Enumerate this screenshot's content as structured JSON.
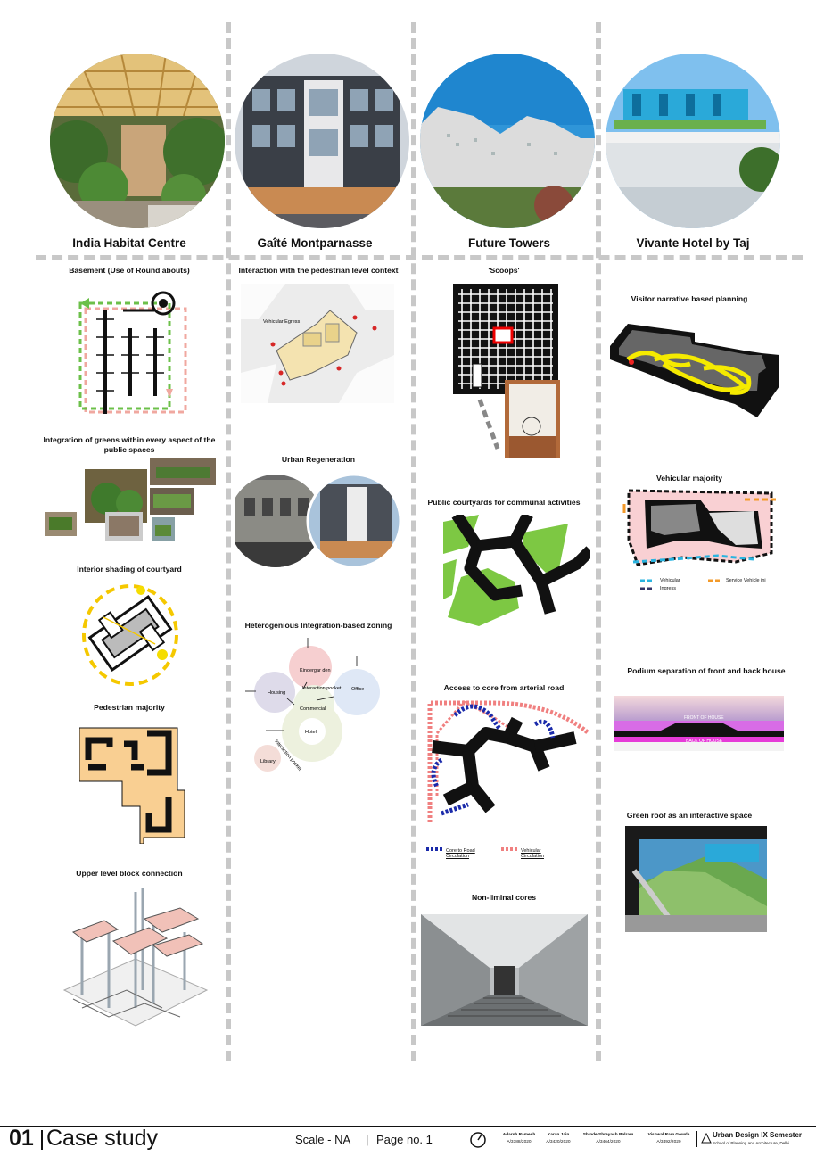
{
  "projects": [
    {
      "title": "India Habitat Centre"
    },
    {
      "title": "Gaîté Montparnasse"
    },
    {
      "title": "Future Towers"
    },
    {
      "title": "Vivante Hotel by Taj"
    }
  ],
  "col1": {
    "basement": "Basement (Use of Round abouts)",
    "greens": "Integration of greens within every aspect of the public spaces",
    "shading": "Interior shading of courtyard",
    "pedestrian": "Pedestrian majority",
    "upper": "Upper level block connection"
  },
  "col2": {
    "interaction": "Interaction with the pedestrian level context",
    "vehicular_egress": "Vehicular Egress",
    "regeneration": "Urban Regeneration",
    "zoning": "Heterogenious Integration-based zoning",
    "bubbles": {
      "kindergarden": "Kindergar den",
      "housing": "Housing",
      "interaction_pocket": "Interaction pocket",
      "office": "Office",
      "commercial": "Commercial",
      "hotel": "Hotel",
      "interaction_pocket2": "Interaction pocket",
      "library": "Library"
    }
  },
  "col3": {
    "scoops": "'Scoops'",
    "courtyards": "Public courtyards for communal activities",
    "access": "Access to core from arterial road",
    "legend_core": "Core to Road Circulation",
    "legend_vehicular": "Vehicular Circulation",
    "cores": "Non-liminal cores"
  },
  "col4": {
    "visitor": "Visitor narrative based planning",
    "vehicular": "Vehicular majority",
    "legend_vehicular": "Vehicular",
    "legend_ingress": "Ingress",
    "legend_service": "Service Vehicle inj",
    "podium": "Podium separation of front and back house",
    "front": "FRONT OF HOUSE",
    "back": "BACK OF HOUSE",
    "green_roof": "Green roof as an interactive space"
  },
  "footer": {
    "number": "01",
    "title": "Case study",
    "scale": "Scale - NA",
    "page": "Page no. 1",
    "students": [
      {
        "name": "Adarsh Ramesh",
        "id": "A/3388/2020"
      },
      {
        "name": "Karan Jain",
        "id": "A/3420/2020"
      },
      {
        "name": "Shinde Shreyash Balram",
        "id": "A/3464/2020"
      },
      {
        "name": "Vishwal Ram Gowda",
        "id": "A/3492/2020"
      }
    ],
    "course": "Urban Design IX Semester",
    "school": "School of Planning and Architecture, Delhi"
  },
  "colors": {
    "accent_green": "#7dc843",
    "pink": "#f2c9c4",
    "peach": "#f9cf92",
    "yellow": "#f5dd00"
  }
}
